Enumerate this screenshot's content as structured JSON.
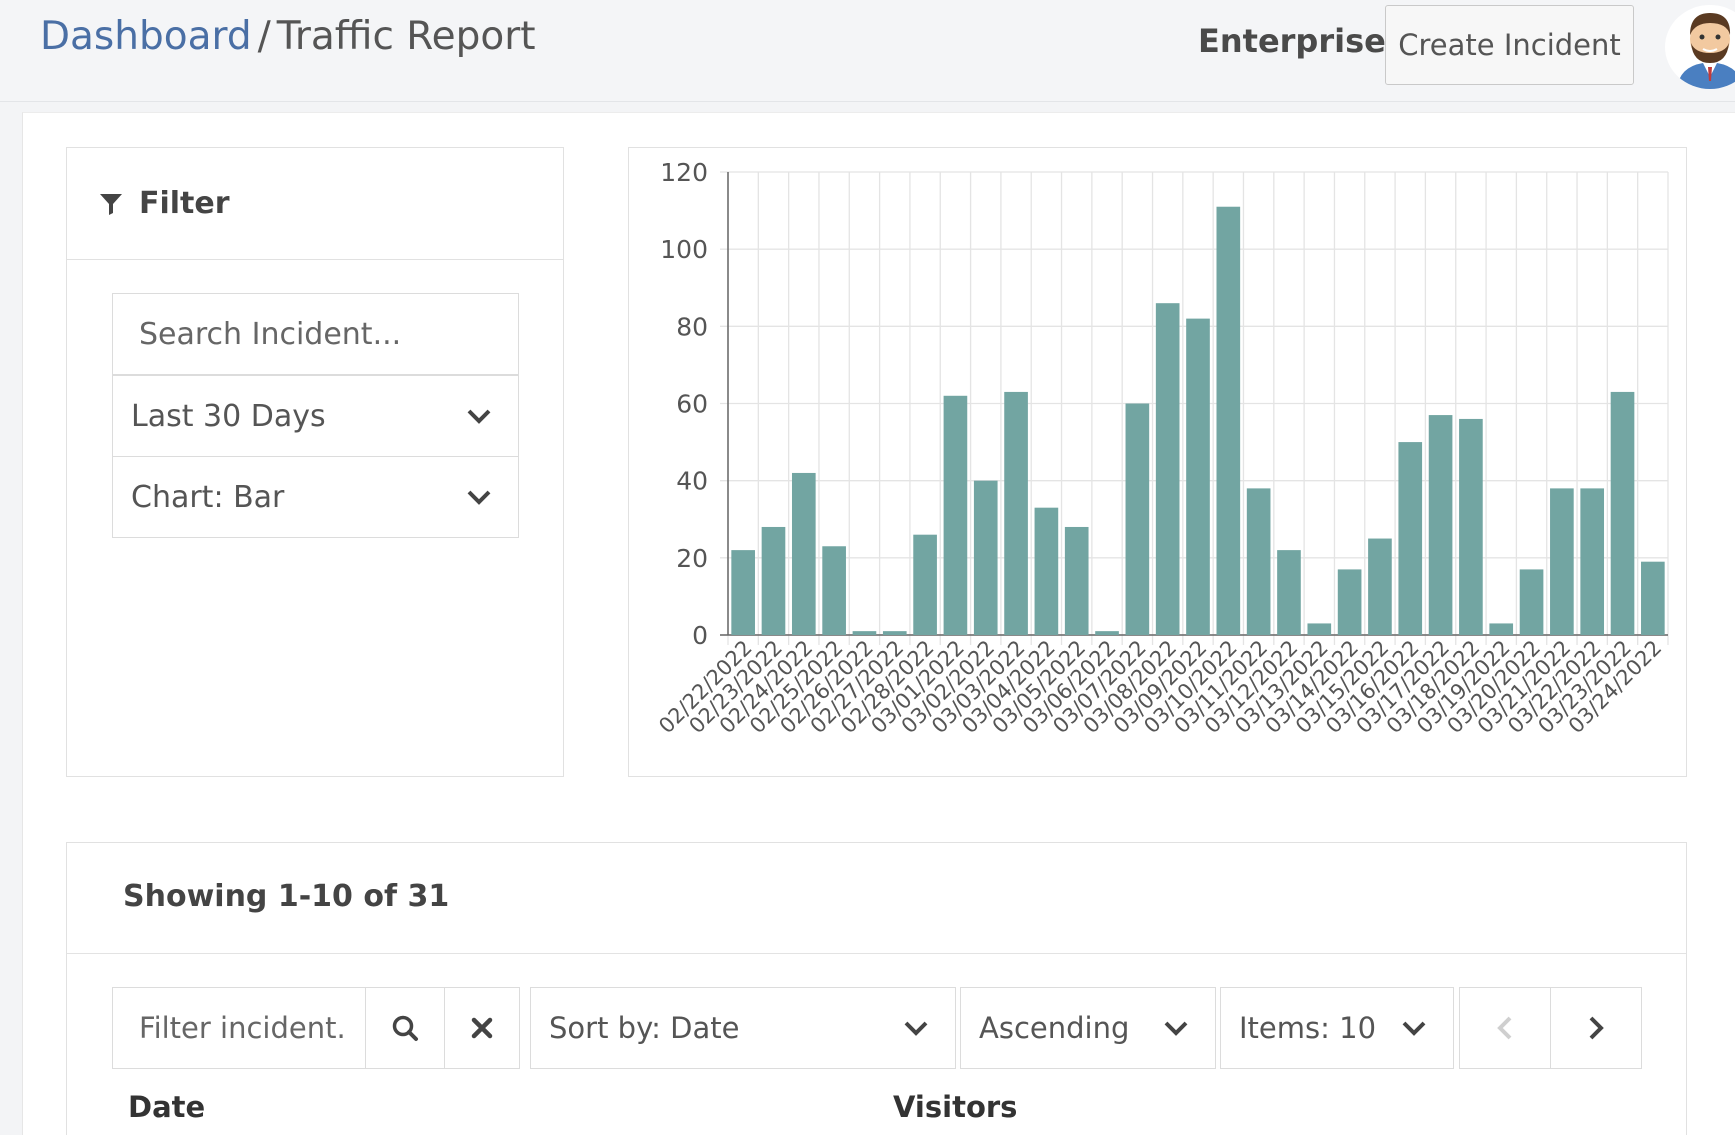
{
  "header": {
    "breadcrumb_link": "Dashboard",
    "breadcrumb_sep": "/",
    "breadcrumb_current": "Traffic Report",
    "plan": "Enterprise",
    "create_button": "Create Incident"
  },
  "filter": {
    "title": "Filter",
    "search_placeholder": "Search Incident...",
    "range_value": "Last 30 Days",
    "chart_type_value": "Chart: Bar"
  },
  "chart_data": {
    "type": "bar",
    "categories": [
      "02/22/2022",
      "02/23/2022",
      "02/24/2022",
      "02/25/2022",
      "02/26/2022",
      "02/27/2022",
      "02/28/2022",
      "03/01/2022",
      "03/02/2022",
      "03/03/2022",
      "03/04/2022",
      "03/05/2022",
      "03/06/2022",
      "03/07/2022",
      "03/08/2022",
      "03/09/2022",
      "03/10/2022",
      "03/11/2022",
      "03/12/2022",
      "03/13/2022",
      "03/14/2022",
      "03/15/2022",
      "03/16/2022",
      "03/17/2022",
      "03/18/2022",
      "03/19/2022",
      "03/20/2022",
      "03/21/2022",
      "03/22/2022",
      "03/23/2022",
      "03/24/2022"
    ],
    "values": [
      22,
      28,
      42,
      23,
      1,
      1,
      26,
      62,
      40,
      63,
      33,
      28,
      1,
      60,
      86,
      82,
      111,
      38,
      22,
      3,
      17,
      25,
      50,
      57,
      56,
      3,
      17,
      38,
      38,
      63,
      19
    ],
    "yticks": [
      0,
      20,
      40,
      60,
      80,
      100,
      120
    ],
    "ylim": [
      0,
      120
    ],
    "grid": true,
    "bar_color": "#72a5a2"
  },
  "table": {
    "showing": "Showing 1-10 of 31",
    "filter_placeholder": "Filter incident.",
    "sort_value": "Sort by: Date",
    "order_value": "Ascending",
    "items_value": "Items: 10",
    "columns": [
      "Date",
      "Visitors"
    ]
  }
}
